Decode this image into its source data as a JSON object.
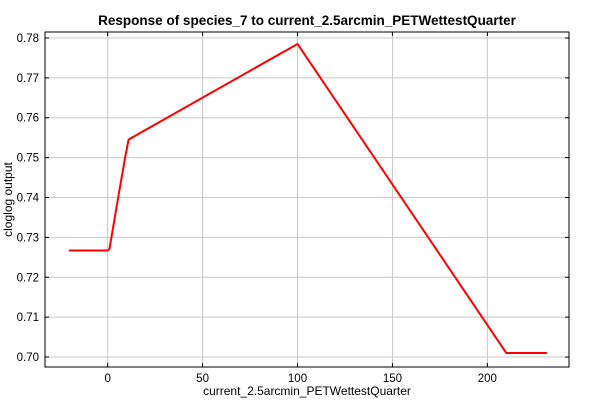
{
  "chart_data": {
    "type": "line",
    "title": "Response of species_7 to current_2.5arcmin_PETWettestQuarter",
    "xlabel": "current_2.5arcmin_PETWettestQuarter",
    "ylabel": "cloglog output",
    "xlim": [
      -33,
      243
    ],
    "ylim": [
      0.6975,
      0.7815
    ],
    "x_ticks": [
      0,
      50,
      100,
      150,
      200
    ],
    "y_ticks": [
      0.7,
      0.71,
      0.72,
      0.73,
      0.74,
      0.75,
      0.76,
      0.77,
      0.78
    ],
    "y_tick_labels": [
      "0.70",
      "0.71",
      "0.72",
      "0.73",
      "0.74",
      "0.75",
      "0.76",
      "0.77",
      "0.78"
    ],
    "grid": true,
    "series": [
      {
        "color": "#ff0000",
        "x": [
          -20,
          0,
          1,
          5,
          9,
          11,
          12,
          100,
          210,
          231
        ],
        "y": [
          0.7267,
          0.7267,
          0.7272,
          0.7385,
          0.7495,
          0.7545,
          0.7548,
          0.7785,
          0.701,
          0.701
        ]
      }
    ]
  }
}
